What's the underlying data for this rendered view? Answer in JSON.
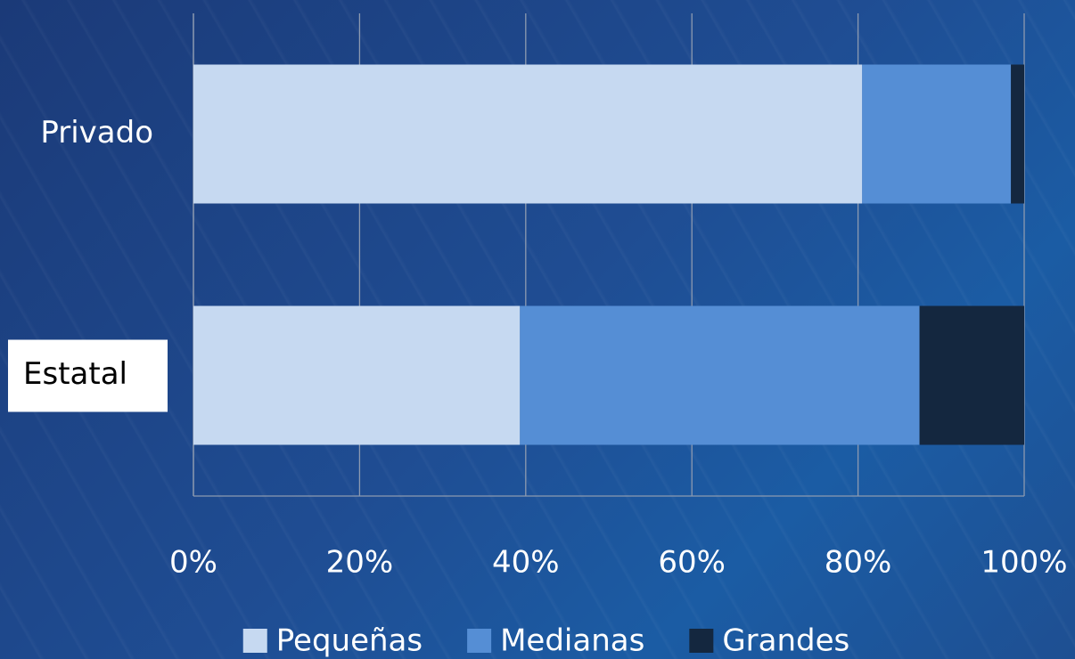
{
  "chart_data": {
    "type": "stacked_barh",
    "categories": [
      "Privado",
      "Estatal"
    ],
    "series": [
      {
        "name": "Pequeñas",
        "color": "#c6d9f1",
        "values": [
          80.5,
          39.3
        ]
      },
      {
        "name": "Medianas",
        "color": "#558ed5",
        "values": [
          17.9,
          48.1
        ]
      },
      {
        "name": "Grandes",
        "color": "#14273f",
        "values": [
          1.6,
          12.6
        ]
      }
    ],
    "xlim": [
      0,
      100
    ],
    "xticks": [
      {
        "value": 0,
        "label": "0%"
      },
      {
        "value": 20,
        "label": "20%"
      },
      {
        "value": 40,
        "label": "40%"
      },
      {
        "value": 60,
        "label": "60%"
      },
      {
        "value": 80,
        "label": "80%"
      },
      {
        "value": 100,
        "label": "100%"
      }
    ],
    "grid": true,
    "legend": "bottom"
  }
}
